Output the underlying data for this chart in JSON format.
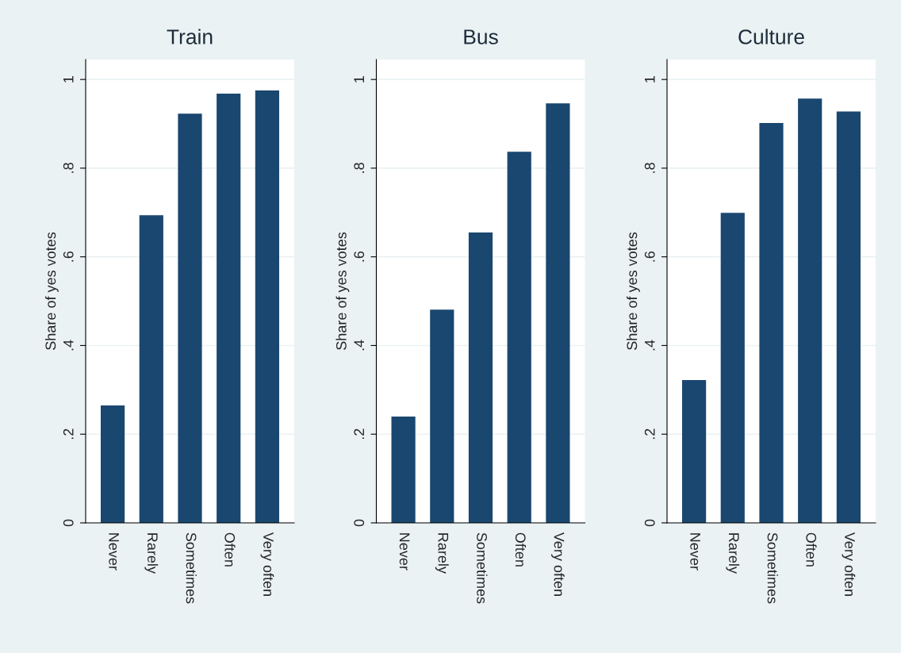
{
  "chart_data": [
    {
      "type": "bar",
      "title": "Train",
      "ylabel": "Share of yes votes",
      "categories": [
        "Never",
        "Rarely",
        "Sometimes",
        "Often",
        "Very often"
      ],
      "values": [
        0.265,
        0.694,
        0.923,
        0.968,
        0.975
      ],
      "color": "#1a476f",
      "ylim": [
        0,
        1.045
      ],
      "yticks": [
        0,
        {
          "value": 0.2,
          "label": ".2"
        },
        {
          "value": 0.4,
          "label": ".4"
        },
        {
          "value": 0.6,
          "label": ".6"
        },
        {
          "value": 0.8,
          "label": ".8"
        },
        1
      ],
      "grid": "y",
      "legend": false
    },
    {
      "type": "bar",
      "title": "Bus",
      "ylabel": "Share of yes votes",
      "categories": [
        "Never",
        "Rarely",
        "Sometimes",
        "Often",
        "Very often"
      ],
      "values": [
        0.24,
        0.481,
        0.655,
        0.837,
        0.946
      ],
      "color": "#1a476f",
      "ylim": [
        0,
        1.045
      ],
      "yticks": [
        0,
        {
          "value": 0.2,
          "label": ".2"
        },
        {
          "value": 0.4,
          "label": ".4"
        },
        {
          "value": 0.6,
          "label": ".6"
        },
        {
          "value": 0.8,
          "label": ".8"
        },
        1
      ],
      "grid": "y",
      "legend": false
    },
    {
      "type": "bar",
      "title": "Culture",
      "ylabel": "Share of yes votes",
      "categories": [
        "Never",
        "Rarely",
        "Sometimes",
        "Often",
        "Very often"
      ],
      "values": [
        0.322,
        0.699,
        0.902,
        0.957,
        0.928
      ],
      "color": "#1a476f",
      "ylim": [
        0,
        1.045
      ],
      "yticks": [
        0,
        {
          "value": 0.2,
          "label": ".2"
        },
        {
          "value": 0.4,
          "label": ".4"
        },
        {
          "value": 0.6,
          "label": ".6"
        },
        {
          "value": 0.8,
          "label": ".8"
        },
        1
      ],
      "grid": "y",
      "legend": false
    }
  ]
}
